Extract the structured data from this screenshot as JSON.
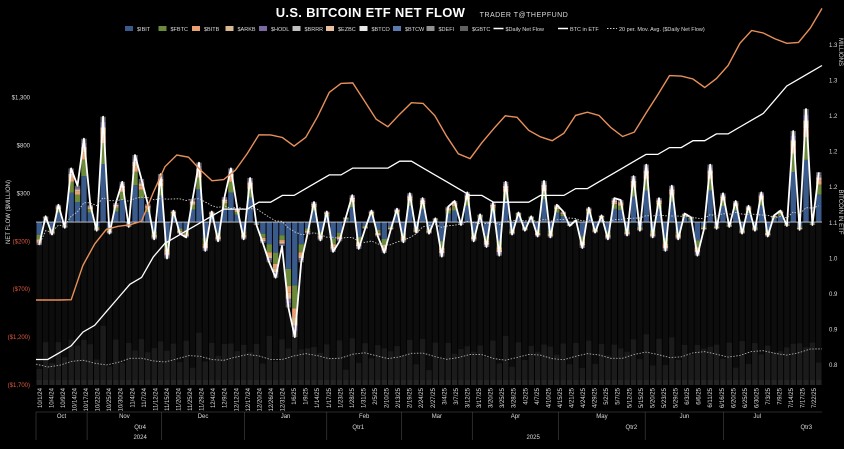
{
  "chart_data": {
    "type": "bar",
    "title": "U.S. BITCOIN ETF NET FLOW",
    "subtitle": "TRADER T@THEPFUND",
    "ylabel": "NET FLOW ($MILLION)",
    "y2label_top": "MILLIONS",
    "y2label_mid": "BITCOIN IN ETF",
    "ylim": [
      -1700,
      1900
    ],
    "left_ticks": [
      "$1,300",
      "$800",
      "$300",
      "($200)",
      "($700)",
      "($1,200)",
      "($1,700)"
    ],
    "left_tick_values": [
      1300,
      800,
      300,
      -200,
      -700,
      -1200,
      -1700
    ],
    "right_ticks": [
      "1.3",
      "1.3",
      "1.2",
      "1.2",
      "1.2",
      "1.1",
      "1.0",
      "0.9",
      "0.9",
      "0.8"
    ],
    "legend": [
      "$IBIT",
      "$FBTC",
      "$BITB",
      "$ARKB",
      "$HODL",
      "$BRRR",
      "$EZBC",
      "$BTCO",
      "$BTCW",
      "$DEFI",
      "$GBTC",
      "$Daily Net Flow",
      "BTC in ETF",
      "20 per. Mov. Avg. ($Daily Net Flow)"
    ],
    "series_colors": {
      "IBIT": "#3a5a8c",
      "FBTC": "#6b8a3a",
      "BITB": "#e8a070",
      "ARKB": "#d8b890",
      "HODL": "#7a6aa0",
      "BRRR": "#c0c0c0",
      "EZBC": "#e8c0a0",
      "BTCO": "#e8e8e8",
      "BTCW": "#5a7ab0",
      "DEFI": "#909090",
      "GBTC": "#606060",
      "daily_net": "#ffffff",
      "btc_in_etf": "#ffffff",
      "mov_avg": "#cccccc",
      "price": "#e8905a"
    },
    "months": [
      "Oct",
      "Nov",
      "Dec",
      "Jan",
      "Feb",
      "Mar",
      "Apr",
      "May",
      "Jun",
      "Jul"
    ],
    "quarters": [
      "Qtr4",
      "Qtr1",
      "Qtr2",
      "Qtr3"
    ],
    "years": [
      "2024",
      "2025"
    ],
    "x_dates": [
      "10/1/24",
      "10/4/24",
      "10/9/24",
      "10/14/24",
      "10/17/24",
      "10/22/24",
      "10/25/24",
      "10/30/24",
      "11/4/24",
      "11/7/24",
      "11/12/24",
      "11/15/24",
      "11/20/24",
      "11/25/24",
      "11/29/24",
      "12/4/24",
      "12/9/24",
      "12/12/24",
      "12/17/24",
      "12/20/24",
      "12/26/24",
      "12/31/24",
      "1/6/25",
      "1/9/25",
      "1/14/25",
      "1/17/25",
      "1/23/25",
      "1/28/25",
      "1/31/25",
      "2/5/25",
      "2/10/25",
      "2/13/25",
      "2/19/25",
      "2/24/25",
      "2/27/25",
      "3/4/25",
      "3/7/25",
      "3/12/25",
      "3/17/25",
      "3/20/25",
      "3/25/25",
      "3/28/25",
      "4/2/25",
      "4/7/25",
      "4/10/25",
      "4/15/25",
      "4/21/25",
      "4/24/25",
      "4/29/25",
      "5/2/25",
      "5/7/25",
      "5/12/25",
      "5/15/25",
      "5/20/25",
      "5/23/25",
      "5/29/25",
      "6/3/25",
      "6/6/25",
      "6/11/25",
      "6/16/25",
      "6/20/25",
      "6/25/25",
      "6/30/25",
      "7/3/25",
      "7/9/25",
      "7/14/25",
      "7/17/25",
      "7/22/25"
    ],
    "daily_net_flow": [
      -240,
      60,
      -130,
      180,
      -60,
      560,
      380,
      870,
      180,
      -90,
      1100,
      -120,
      200,
      420,
      -50,
      700,
      450,
      190,
      -180,
      500,
      -380,
      120,
      -120,
      -160,
      240,
      620,
      -300,
      110,
      -200,
      260,
      560,
      140,
      -180,
      460,
      -30,
      -220,
      -420,
      -580,
      -250,
      -890,
      -1200,
      -420,
      -120,
      210,
      -190,
      110,
      -310,
      -200,
      50,
      280,
      -280,
      -70,
      120,
      -150,
      -320,
      -80,
      140,
      -210,
      300,
      -110,
      250,
      -120,
      40,
      -360,
      160,
      220,
      -30,
      310,
      -200,
      80,
      -260,
      200,
      -350,
      420,
      -130,
      100,
      -90,
      60,
      -150,
      430,
      -160,
      180,
      110,
      -40,
      20,
      -270,
      150,
      -110,
      70,
      -180,
      250,
      230,
      -140,
      480,
      -90,
      600,
      -160,
      250,
      -300,
      380,
      -180,
      90,
      50,
      -350,
      -80,
      600,
      -70,
      300,
      -50,
      220,
      -120,
      170,
      -90,
      310,
      -150,
      70,
      120,
      -40,
      950,
      -80,
      1180,
      -30,
      520
    ],
    "btc_in_etf_millions": [
      0.88,
      0.88,
      0.89,
      0.9,
      0.92,
      0.93,
      0.95,
      0.97,
      0.99,
      1.0,
      1.03,
      1.05,
      1.06,
      1.07,
      1.08,
      1.09,
      1.1,
      1.1,
      1.1,
      1.11,
      1.11,
      1.12,
      1.12,
      1.13,
      1.14,
      1.15,
      1.15,
      1.16,
      1.16,
      1.16,
      1.16,
      1.17,
      1.17,
      1.16,
      1.15,
      1.14,
      1.13,
      1.12,
      1.12,
      1.11,
      1.11,
      1.11,
      1.11,
      1.12,
      1.12,
      1.12,
      1.13,
      1.13,
      1.14,
      1.15,
      1.16,
      1.17,
      1.18,
      1.18,
      1.19,
      1.19,
      1.2,
      1.2,
      1.21,
      1.21,
      1.22,
      1.23,
      1.24,
      1.26,
      1.28,
      1.29,
      1.3,
      1.31
    ]
  }
}
